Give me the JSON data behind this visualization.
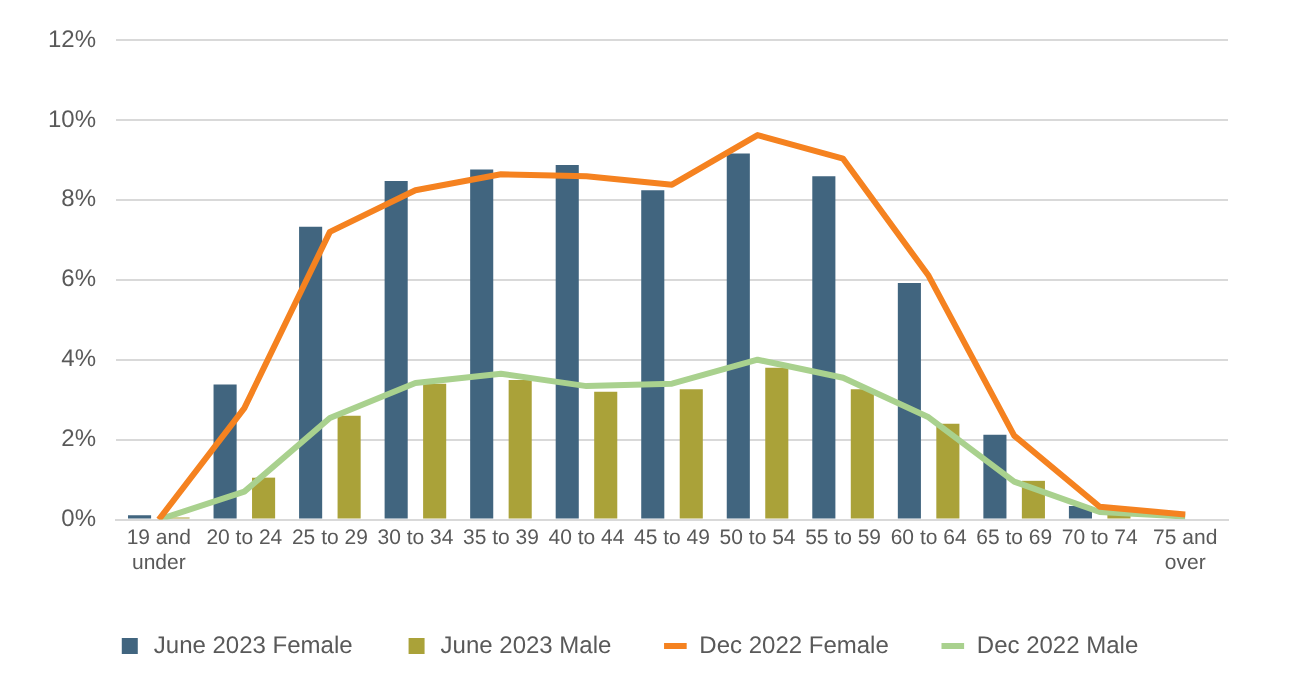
{
  "chart_data": {
    "type": "bar",
    "categories": [
      "19 and under",
      "20 to 24",
      "25 to 29",
      "30 to 34",
      "35 to 39",
      "40 to 44",
      "45 to 49",
      "50 to 54",
      "55 to 59",
      "60 to 64",
      "65 to 69",
      "70 to 74",
      "75 and over"
    ],
    "series": [
      {
        "name": "June 2023 Female",
        "color": "#41657f",
        "values": [
          0.11,
          3.38,
          7.33,
          8.47,
          8.76,
          8.87,
          8.24,
          9.16,
          8.59,
          5.92,
          2.12,
          0.34,
          null
        ]
      },
      {
        "name": "June 2023 Male",
        "color": "#aaa239",
        "values": [
          0.05,
          1.05,
          2.6,
          3.4,
          3.49,
          3.2,
          3.26,
          3.8,
          3.26,
          2.4,
          0.97,
          0.15,
          null
        ]
      },
      {
        "name": "Dec 2022 Female",
        "type": "line",
        "color": "#f58220",
        "values": [
          0,
          2.79,
          7.2,
          8.24,
          8.64,
          8.59,
          8.38,
          9.62,
          9.03,
          6.1,
          2.1,
          0.32,
          0.13
        ]
      },
      {
        "name": "Dec 2022 Male",
        "type": "line",
        "color": "#a9d18e",
        "values": [
          0,
          0.7,
          2.54,
          3.42,
          3.65,
          3.34,
          3.4,
          4.0,
          3.55,
          2.56,
          0.95,
          0.19,
          0.08
        ]
      }
    ],
    "ylim": [
      0,
      12
    ],
    "yticks": [
      {
        "value": 0,
        "label": "0%"
      },
      {
        "value": 2,
        "label": "2%"
      },
      {
        "value": 4,
        "label": "4%"
      },
      {
        "value": 6,
        "label": "6%"
      },
      {
        "value": 8,
        "label": "8%"
      },
      {
        "value": 10,
        "label": "10%"
      },
      {
        "value": 12,
        "label": "12%"
      }
    ],
    "grid": "y",
    "legend": "bottom",
    "marker": "none",
    "line_style": "solid"
  }
}
